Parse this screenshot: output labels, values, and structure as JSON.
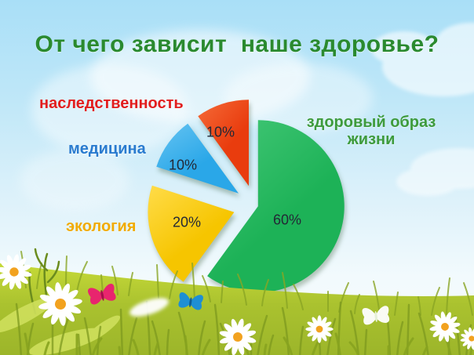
{
  "title": "От чего зависит  наше здоровье?",
  "chart_data": {
    "type": "pie",
    "title": "От чего зависит наше здоровье?",
    "unit": "%",
    "direction": "clockwise",
    "start_angle_deg": 0,
    "exploded": true,
    "slices": [
      {
        "label": "здоровый образ жизни",
        "value": 60,
        "pct_label": "60%",
        "color": "#1db257",
        "color_light": "#45c878",
        "label_color": "#3e9b3c"
      },
      {
        "label": "экология",
        "value": 20,
        "pct_label": "20%",
        "color": "#f6c500",
        "color_light": "#ffdc49",
        "label_color": "#f1ab00"
      },
      {
        "label": "медицина",
        "value": 10,
        "pct_label": "10%",
        "color": "#2aa7e8",
        "color_light": "#66c4f2",
        "label_color": "#2a7bcf"
      },
      {
        "label": "наследственность",
        "value": 10,
        "pct_label": "10%",
        "color": "#e93c0e",
        "color_light": "#f56b38",
        "label_color": "#e21e1e"
      }
    ]
  },
  "scene": {
    "title_color": "#2a8a2f",
    "percent_text_color": "#232836",
    "sky_top": "#a9dff7",
    "meadow_light": "#c6da38",
    "meadow_dark": "#9cb52a",
    "grass_dark": "#7d9a1f",
    "grass_mid": "#8aa524",
    "leaf_light": "#cfe05c",
    "daisy_petal": "#ffffff",
    "daisy_center": "#f2a21f",
    "butterfly_pink": "#e8256e",
    "butterfly_blue": "#1e8fd4",
    "butterfly_white": "#ffffff",
    "cloud": "#ffffff"
  }
}
